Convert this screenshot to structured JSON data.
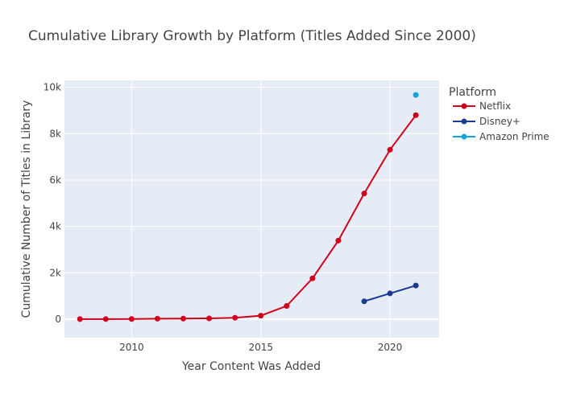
{
  "chart_data": {
    "type": "line",
    "title": "Cumulative Library Growth by Platform (Titles Added Since 2000)",
    "xlabel": "Year Content Was Added",
    "ylabel": "Cumulative Number of Titles in Library",
    "xlim": [
      2007.4,
      2021.9
    ],
    "ylim": [
      -800,
      10300
    ],
    "x_ticks": [
      2010,
      2015,
      2020
    ],
    "y_ticks": [
      0,
      2000,
      4000,
      6000,
      8000,
      10000
    ],
    "y_tick_labels": [
      "0",
      "2k",
      "4k",
      "6k",
      "8k",
      "10k"
    ],
    "grid": true,
    "legend": {
      "title": "Platform",
      "placement": "top-right"
    },
    "series": [
      {
        "name": "Netflix",
        "color": "#d0021b",
        "x": [
          2008,
          2009,
          2010,
          2011,
          2012,
          2013,
          2014,
          2015,
          2016,
          2017,
          2018,
          2019,
          2020,
          2021
        ],
        "values": [
          2,
          4,
          7,
          20,
          23,
          33,
          60,
          150,
          570,
          1760,
          3390,
          5420,
          7310,
          8800
        ]
      },
      {
        "name": "Disney+",
        "color": "#1a3b8f",
        "x": [
          2019,
          2020,
          2021
        ],
        "values": [
          770,
          1110,
          1450
        ]
      },
      {
        "name": "Amazon Prime",
        "color": "#12a3db",
        "x": [
          2021
        ],
        "values": [
          9670
        ]
      }
    ]
  }
}
